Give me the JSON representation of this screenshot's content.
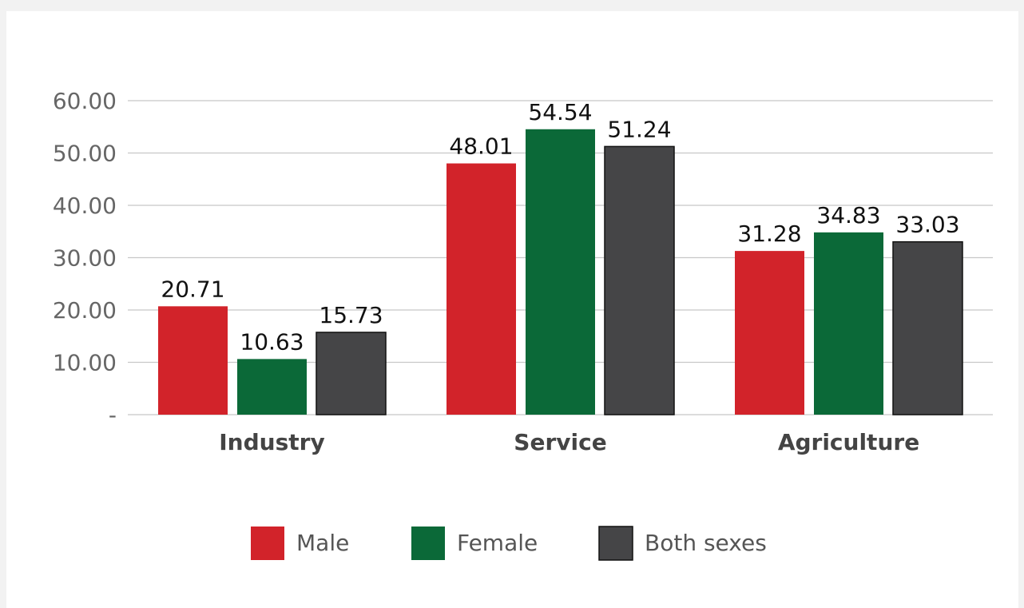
{
  "chart_data": {
    "type": "bar",
    "categories": [
      "Industry",
      "Service",
      "Agriculture"
    ],
    "series": [
      {
        "name": "Male",
        "color": "#d2232a",
        "values": [
          20.71,
          48.01,
          31.28
        ]
      },
      {
        "name": "Female",
        "color": "#0b6938",
        "values": [
          10.63,
          54.54,
          34.83
        ]
      },
      {
        "name": "Both sexes",
        "color": "#454547",
        "values": [
          15.73,
          51.24,
          33.03
        ]
      }
    ],
    "ylim": [
      0,
      60
    ],
    "yticks": [
      {
        "value": 0,
        "label": "-"
      },
      {
        "value": 10,
        "label": "10.00"
      },
      {
        "value": 20,
        "label": "20.00"
      },
      {
        "value": 30,
        "label": "30.00"
      },
      {
        "value": 40,
        "label": "40.00"
      },
      {
        "value": 50,
        "label": "50.00"
      },
      {
        "value": 60,
        "label": "60.00"
      }
    ],
    "grid": true,
    "legend": "bottom"
  }
}
